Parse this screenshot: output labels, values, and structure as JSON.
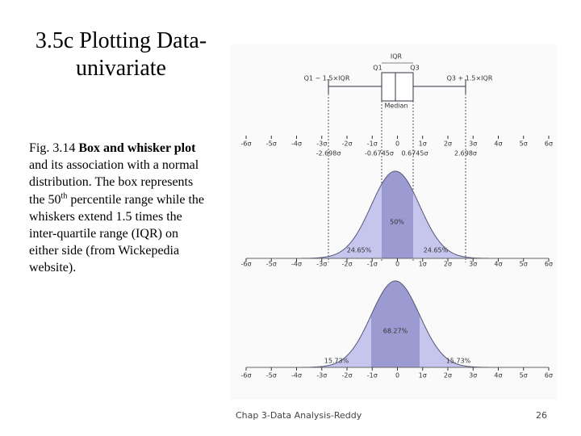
{
  "title": [
    "3.5c Plotting Data-",
    "univariate"
  ],
  "caption": {
    "prefix": "Fig. 3.14 ",
    "bold": "Box and whisker plot",
    "text1": " and its association with a normal distribution. The box represents the 50",
    "sup": "th",
    "text2": " percentile range while the whiskers extend 1.5 times the inter-quartile range (IQR) on either side (from Wickepedia website)."
  },
  "figure": {
    "boxplot_labels": {
      "iqr": "IQR",
      "q1": "Q1",
      "q3": "Q3",
      "lower_whisker": "Q1 − 1.5×IQR",
      "upper_whisker": "Q3 + 1.5×IQR",
      "median": "Median"
    },
    "axis_labels": [
      "-6σ",
      "-5σ",
      "-4σ",
      "-3σ",
      "-2σ",
      "-1σ",
      "0",
      "1σ",
      "2σ",
      "3σ",
      "4σ",
      "5σ",
      "6σ"
    ],
    "quantile_labels": [
      "-2.698σ",
      "-0.6745σ",
      "0.6745σ",
      "2.698σ"
    ],
    "iqr_areas": [
      "24.65%",
      "50%",
      "24.65%"
    ],
    "sigma_areas": [
      "15.73%",
      "68.27%",
      "15.73%"
    ]
  },
  "footer": {
    "text": "Chap 3-Data Analysis-Reddy",
    "page": "26"
  }
}
